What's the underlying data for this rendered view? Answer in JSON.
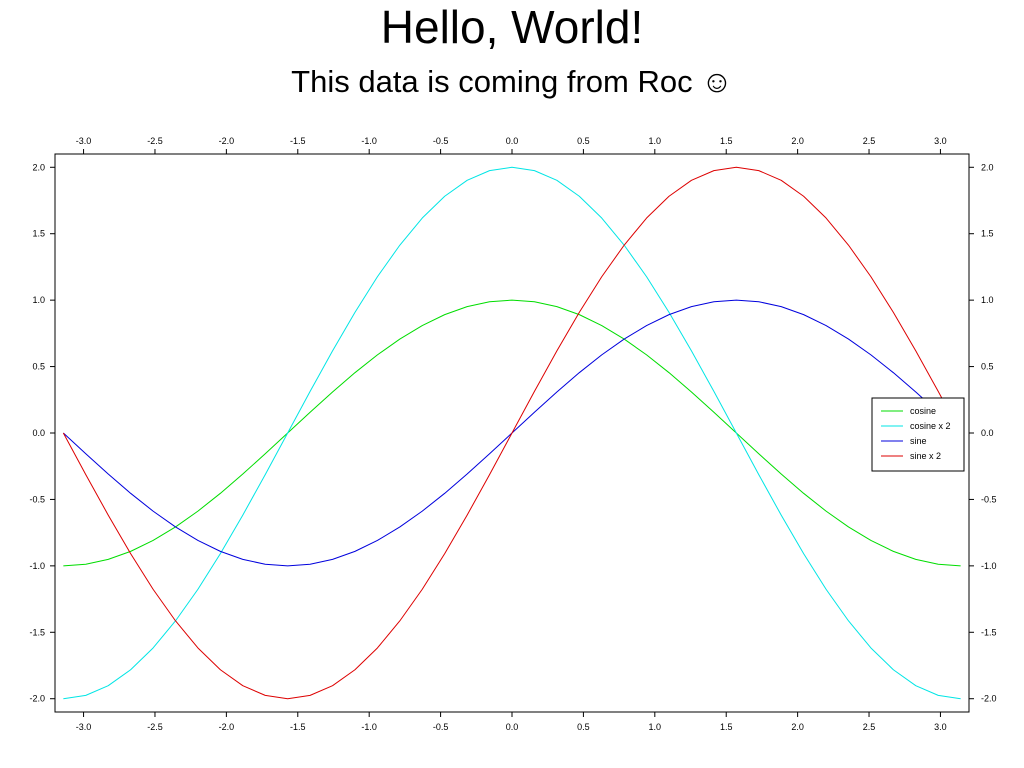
{
  "chart_data": {
    "type": "line",
    "title": "Hello, World!",
    "subtitle": "This data is coming from Roc ☺",
    "xlabel": "",
    "ylabel": "",
    "xlim": [
      -3.2,
      3.2
    ],
    "ylim": [
      -2.1,
      2.1
    ],
    "x_ticks": [
      -3.0,
      -2.5,
      -2.0,
      -1.5,
      -1.0,
      -0.5,
      0.0,
      0.5,
      1.0,
      1.5,
      2.0,
      2.5,
      3.0
    ],
    "x_tick_labels": [
      "-3.0",
      "-2.5",
      "-2.0",
      "-1.5",
      "-1.0",
      "-0.5",
      "0.0",
      "0.5",
      "1.0",
      "1.5",
      "2.0",
      "2.5",
      "3.0"
    ],
    "y_ticks": [
      2.0,
      1.5,
      1.0,
      0.5,
      0.0,
      -0.5,
      -1.0,
      -1.5,
      -2.0
    ],
    "y_tick_labels": [
      "2.0",
      "1.5",
      "1.0",
      "0.5",
      "0.0",
      "-0.5",
      "-1.0",
      "-1.5",
      "-2.0"
    ],
    "grid": false,
    "legend_position": "right",
    "x": [
      -3.1416,
      -2.9845,
      -2.8274,
      -2.6704,
      -2.5133,
      -2.3562,
      -2.1991,
      -2.042,
      -1.885,
      -1.7279,
      -1.5708,
      -1.4137,
      -1.2566,
      -1.0996,
      -0.9425,
      -0.7854,
      -0.6283,
      -0.4712,
      -0.3142,
      -0.1571,
      0.0,
      0.1571,
      0.3142,
      0.4712,
      0.6283,
      0.7854,
      0.9425,
      1.0996,
      1.2566,
      1.4137,
      1.5708,
      1.7279,
      1.885,
      2.042,
      2.1991,
      2.3562,
      2.5133,
      2.6704,
      2.8274,
      2.9845,
      3.1416
    ],
    "series": [
      {
        "name": "cosine",
        "color": "#00dd00",
        "values": [
          -1.0,
          -0.988,
          -0.951,
          -0.891,
          -0.809,
          -0.707,
          -0.588,
          -0.454,
          -0.309,
          -0.156,
          0.0,
          0.156,
          0.309,
          0.454,
          0.588,
          0.707,
          0.809,
          0.891,
          0.951,
          0.988,
          1.0,
          0.988,
          0.951,
          0.891,
          0.809,
          0.707,
          0.588,
          0.454,
          0.309,
          0.156,
          0.0,
          -0.156,
          -0.309,
          -0.454,
          -0.588,
          -0.707,
          -0.809,
          -0.891,
          -0.951,
          -0.988,
          -1.0
        ]
      },
      {
        "name": "cosine x 2",
        "color": "#00e5e5",
        "values": [
          -2.0,
          -1.975,
          -1.902,
          -1.782,
          -1.618,
          -1.414,
          -1.176,
          -0.908,
          -0.618,
          -0.313,
          0.0,
          0.313,
          0.618,
          0.908,
          1.176,
          1.414,
          1.618,
          1.782,
          1.902,
          1.975,
          2.0,
          1.975,
          1.902,
          1.782,
          1.618,
          1.414,
          1.176,
          0.908,
          0.618,
          0.313,
          0.0,
          -0.313,
          -0.618,
          -0.908,
          -1.176,
          -1.414,
          -1.618,
          -1.782,
          -1.902,
          -1.975,
          -2.0
        ]
      },
      {
        "name": "sine",
        "color": "#0000dd",
        "values": [
          0.0,
          -0.156,
          -0.309,
          -0.454,
          -0.588,
          -0.707,
          -0.809,
          -0.891,
          -0.951,
          -0.988,
          -1.0,
          -0.988,
          -0.951,
          -0.891,
          -0.809,
          -0.707,
          -0.588,
          -0.454,
          -0.309,
          -0.156,
          0.0,
          0.156,
          0.309,
          0.454,
          0.588,
          0.707,
          0.809,
          0.891,
          0.951,
          0.988,
          1.0,
          0.988,
          0.951,
          0.891,
          0.809,
          0.707,
          0.588,
          0.454,
          0.309,
          0.156,
          0.0
        ]
      },
      {
        "name": "sine x 2",
        "color": "#dd0000",
        "values": [
          0.0,
          -0.313,
          -0.618,
          -0.908,
          -1.176,
          -1.414,
          -1.618,
          -1.782,
          -1.902,
          -1.975,
          -2.0,
          -1.975,
          -1.902,
          -1.782,
          -1.618,
          -1.414,
          -1.176,
          -0.908,
          -0.618,
          -0.313,
          0.0,
          0.313,
          0.618,
          0.908,
          1.176,
          1.414,
          1.618,
          1.782,
          1.902,
          1.975,
          2.0,
          1.975,
          1.902,
          1.782,
          1.618,
          1.414,
          1.176,
          0.908,
          0.618,
          0.313,
          0.0
        ]
      }
    ]
  }
}
